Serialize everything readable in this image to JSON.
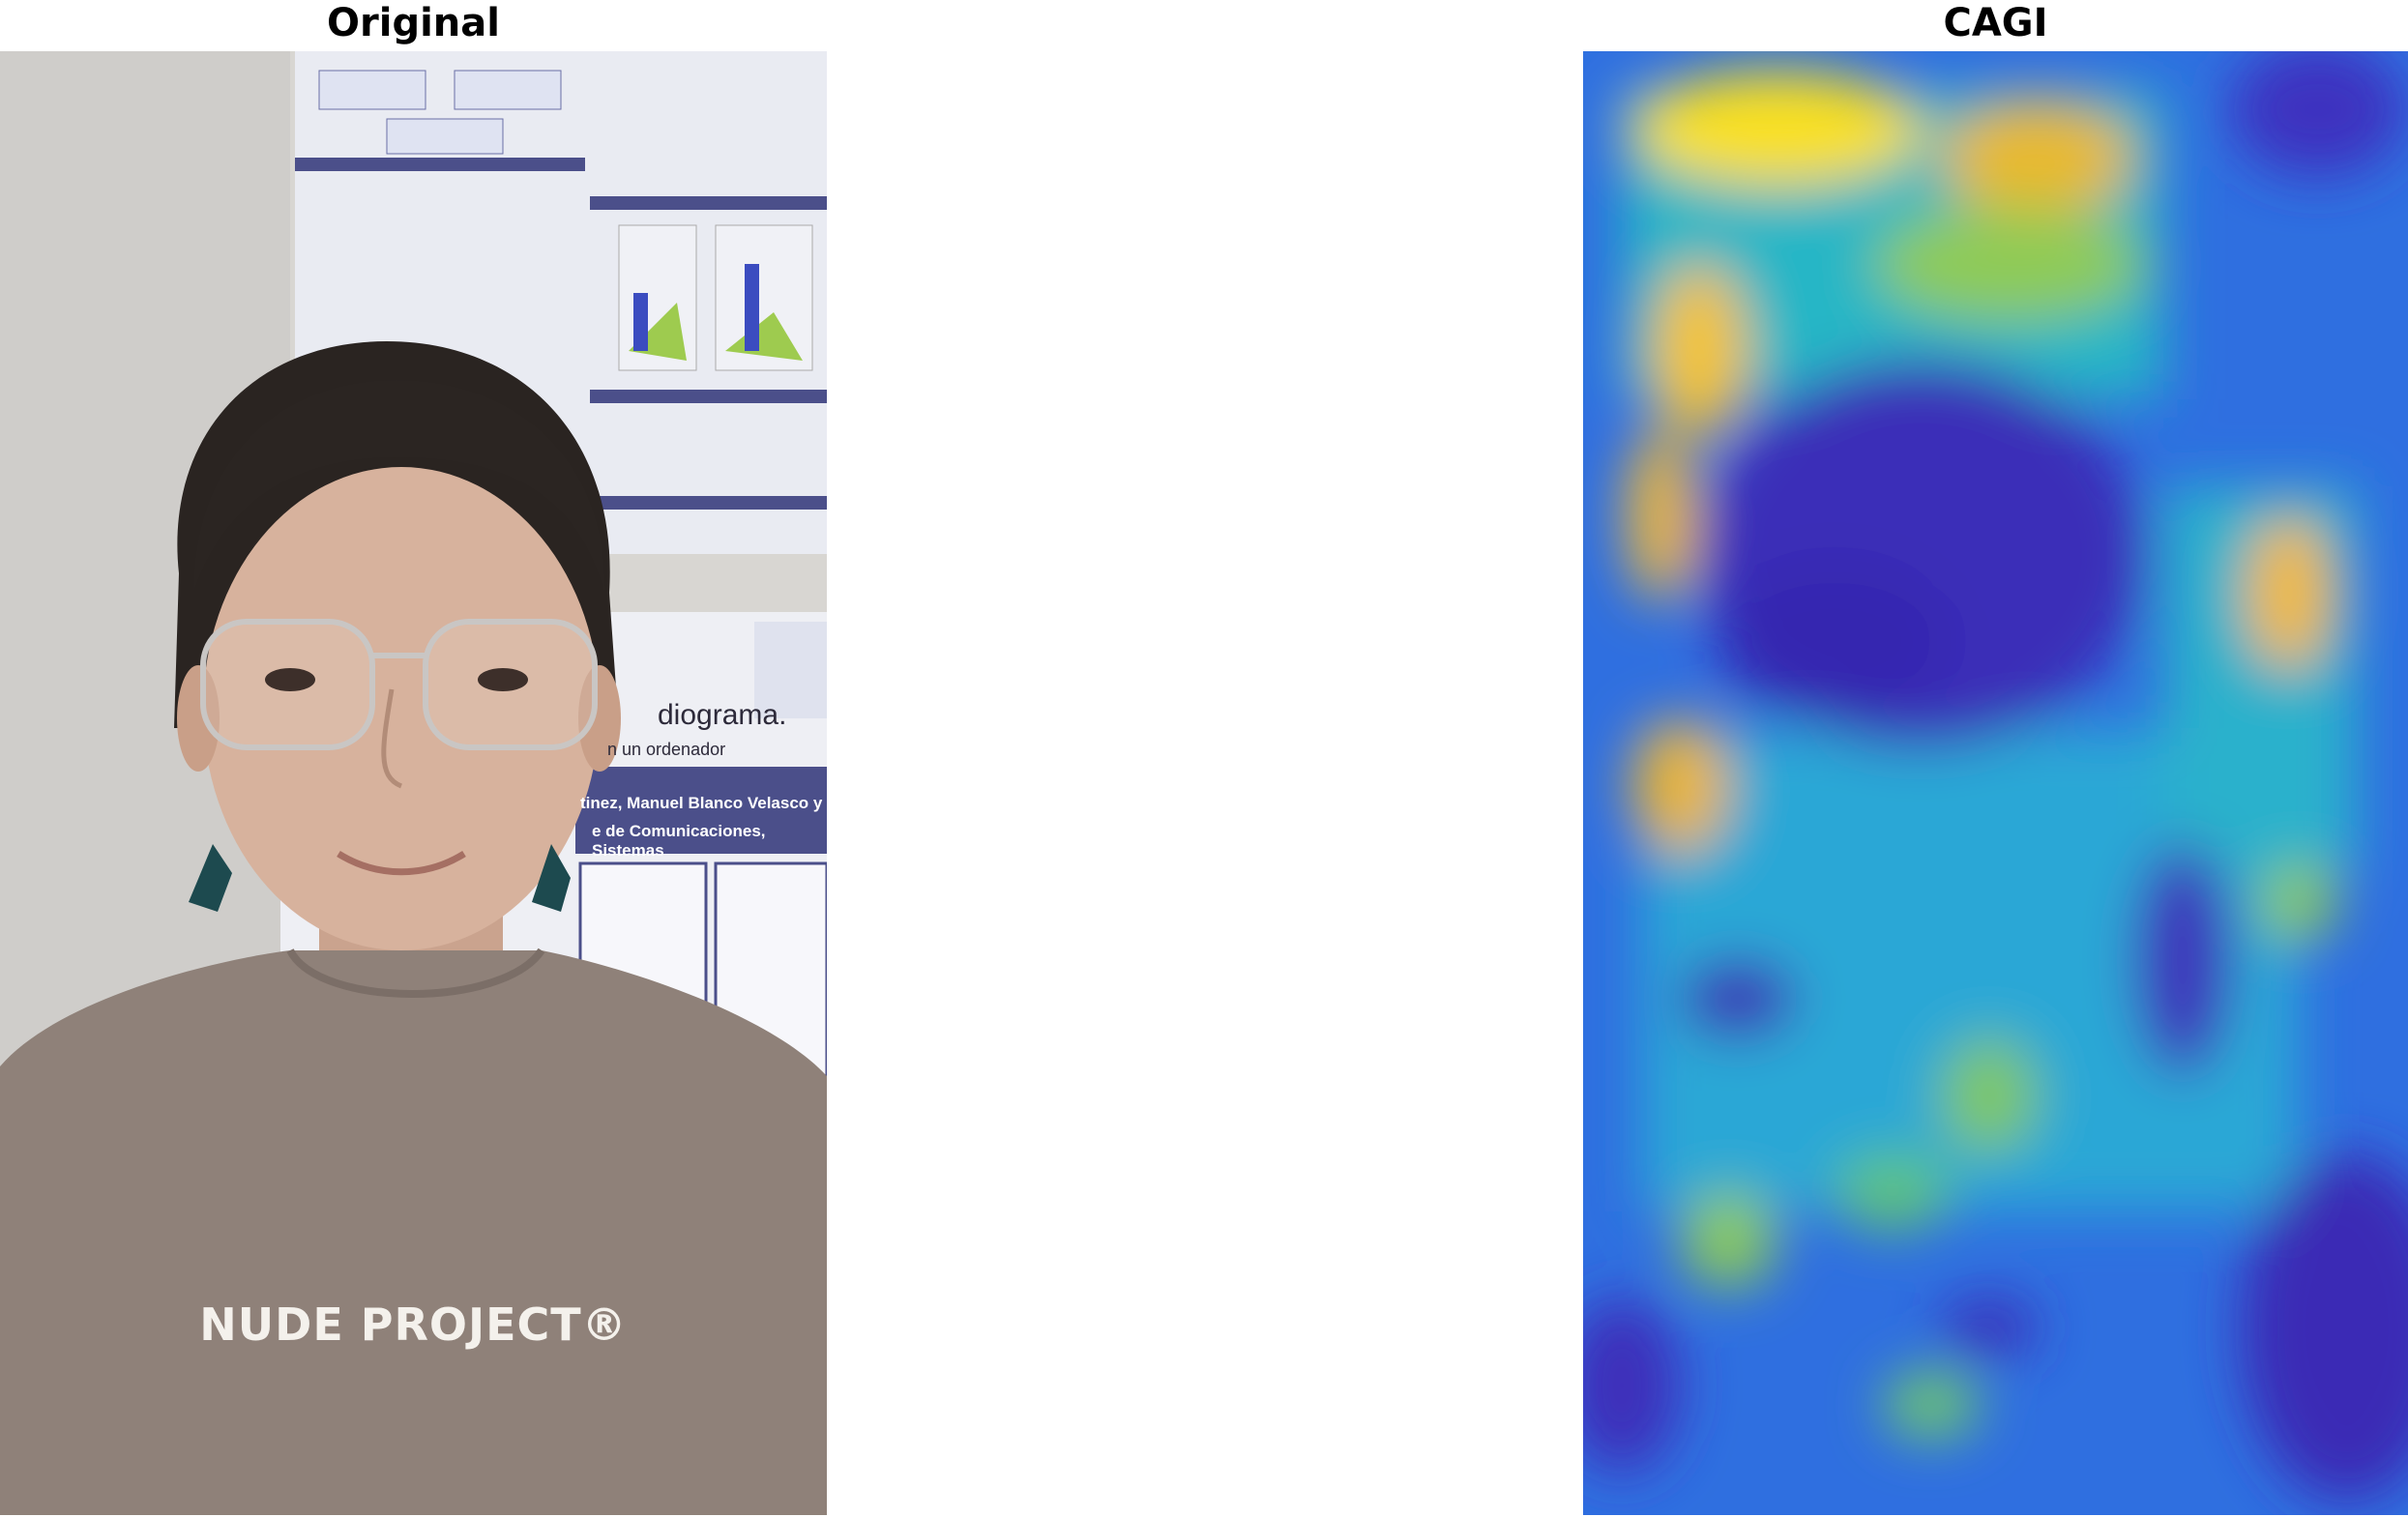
{
  "panels": {
    "left_title": "Original",
    "right_title": "CAGI"
  },
  "photo": {
    "shirt_text": "NUDE PROJECT®",
    "poster_word": "diograma.",
    "poster_sub": "n un ordenador",
    "poster_authors": "tinez, Manuel Blanco Velasco y",
    "poster_dept": "e de Comunicaciones, Sistemas"
  },
  "heatmap": {
    "colormap": "parula",
    "colors": {
      "low": "#3e26a8",
      "mid": "#2fb3c9",
      "high": "#f9fb0e"
    }
  }
}
